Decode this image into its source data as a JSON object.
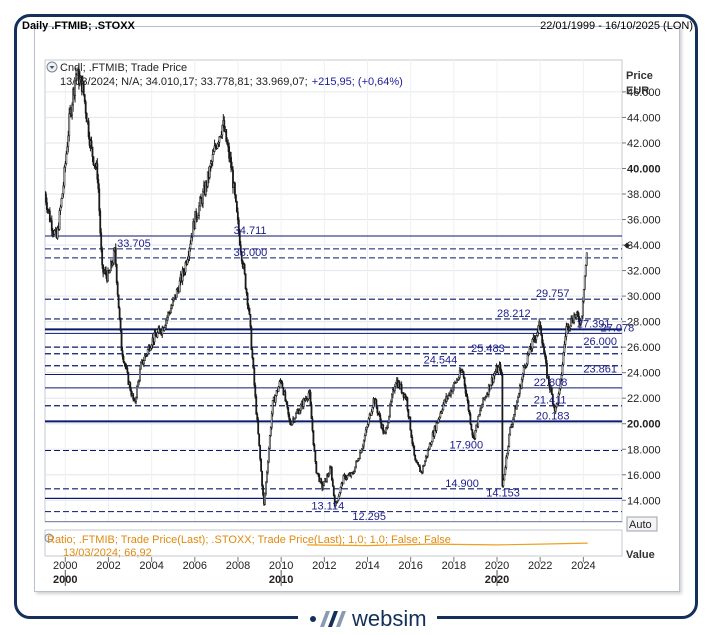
{
  "header": {
    "title": "Daily .FTMIB; .STOXX",
    "date_range": "22/01/1999 - 16/10/2025 (LON)"
  },
  "legend": {
    "series_label": "Cndl; .FTMIB; Trade Price",
    "ohlc_text": "13/03/2024; N/A; 34.010,17; 33.778,81; 33.969,07;",
    "change_text": "+215,95; (+0,64%)"
  },
  "axis": {
    "price_title": "Price",
    "price_unit": "EUR",
    "auto_button": "Auto",
    "value_label": "Value"
  },
  "ratio_panel": {
    "label": "Ratio; .FTMIB; Trade Price(Last); .STOXX; Trade Price(Last);  1,0; 1,0; False; False",
    "value_text": "13/03/2024; 66,92"
  },
  "brand": {
    "name": "websim"
  },
  "colors": {
    "candle": "#1a1a1a",
    "level_line": "#0a1a6e",
    "level_label": "#1c1c8a",
    "ratio_line": "#f0a020",
    "frame": "#13305a"
  },
  "chart_data": {
    "type": "candlestick",
    "title": "Daily .FTMIB; .STOXX",
    "ylabel": "Price EUR",
    "ylim": [
      12300,
      48500
    ],
    "xlim": [
      1999.06,
      2025.79
    ],
    "yticks": [
      "14.000",
      "16.000",
      "18.000",
      "20.000",
      "22.000",
      "24.000",
      "26.000",
      "28.000",
      "30.000",
      "32.000",
      "34.000",
      "36.000",
      "38.000",
      "40.000",
      "42.000",
      "44.000",
      "46.000"
    ],
    "ytick_values": [
      14000,
      16000,
      18000,
      20000,
      22000,
      24000,
      26000,
      28000,
      30000,
      32000,
      34000,
      36000,
      38000,
      40000,
      42000,
      44000,
      46000
    ],
    "bold_ytick_values": [
      20000,
      40000
    ],
    "xticks_minor": [
      "2000",
      "2002",
      "2004",
      "2006",
      "2008",
      "2010",
      "2012",
      "2014",
      "2016",
      "2018",
      "2020",
      "2022",
      "2024"
    ],
    "xticks_minor_values": [
      2000,
      2002,
      2004,
      2006,
      2008,
      2010,
      2012,
      2014,
      2016,
      2018,
      2020,
      2022,
      2024
    ],
    "xticks_major": [
      "2000",
      "2010",
      "2020"
    ],
    "xticks_major_values": [
      2000,
      2010,
      2020
    ],
    "current_marker": 33969,
    "levels": [
      {
        "value": 34711,
        "label": "34.711",
        "label_x": 2007.8,
        "style": "solid",
        "width": 1
      },
      {
        "value": 33705,
        "label": "33.705",
        "label_x": 2002.4,
        "style": "dashed",
        "width": 1
      },
      {
        "value": 33000,
        "label": "33.000",
        "label_x": 2007.8,
        "style": "dashed",
        "width": 1
      },
      {
        "value": 29757,
        "label": "29.757",
        "label_x": 2021.8,
        "style": "dashed",
        "width": 1.2
      },
      {
        "value": 28212,
        "label": "28.212",
        "label_x": 2020.0,
        "style": "dashed",
        "width": 1.2
      },
      {
        "value": 27391,
        "label": "27.391",
        "label_x": 2023.7,
        "style": "solid",
        "width": 2
      },
      {
        "value": 27078,
        "label": "27.078",
        "label_x": 2024.8,
        "style": "solid",
        "width": 1
      },
      {
        "value": 26000,
        "label": "26.000",
        "label_x": 2024.0,
        "style": "dashed",
        "width": 1.2
      },
      {
        "value": 25483,
        "label": "25.483",
        "label_x": 2018.8,
        "style": "dashed",
        "width": 1.2
      },
      {
        "value": 24544,
        "label": "24.544",
        "label_x": 2016.6,
        "style": "dashed",
        "width": 1.2
      },
      {
        "value": 23861,
        "label": "23.861",
        "label_x": 2024.0,
        "style": "solid",
        "width": 1
      },
      {
        "value": 22808,
        "label": "22.808",
        "label_x": 2021.7,
        "style": "solid",
        "width": 1
      },
      {
        "value": 21411,
        "label": "21.411",
        "label_x": 2021.7,
        "style": "dashed",
        "width": 1.2
      },
      {
        "value": 20183,
        "label": "20.183",
        "label_x": 2021.8,
        "style": "solid",
        "width": 2
      },
      {
        "value": 17900,
        "label": "17.900",
        "label_x": 2017.8,
        "style": "dashed",
        "width": 1
      },
      {
        "value": 14900,
        "label": "14.900",
        "label_x": 2017.6,
        "style": "dashed",
        "width": 1.2
      },
      {
        "value": 14153,
        "label": "14.153",
        "label_x": 2019.5,
        "style": "solid",
        "width": 1.2
      },
      {
        "value": 13114,
        "label": "13.114",
        "label_x": 2011.4,
        "style": "dashed",
        "width": 1
      },
      {
        "value": 12295,
        "label": "12.295",
        "label_x": 2013.3,
        "style": "solid",
        "width": 1.2
      }
    ],
    "price_path": [
      {
        "x": 1999.06,
        "y": 38000
      },
      {
        "x": 1999.3,
        "y": 36000
      },
      {
        "x": 1999.6,
        "y": 34500
      },
      {
        "x": 1999.9,
        "y": 38500
      },
      {
        "x": 2000.2,
        "y": 44000
      },
      {
        "x": 2000.5,
        "y": 47500
      },
      {
        "x": 2000.8,
        "y": 46500
      },
      {
        "x": 2001.2,
        "y": 41500
      },
      {
        "x": 2001.5,
        "y": 39500
      },
      {
        "x": 2001.7,
        "y": 32000
      },
      {
        "x": 2002.0,
        "y": 31500
      },
      {
        "x": 2002.3,
        "y": 33500
      },
      {
        "x": 2002.6,
        "y": 26000
      },
      {
        "x": 2002.9,
        "y": 23500
      },
      {
        "x": 2003.2,
        "y": 21500
      },
      {
        "x": 2003.5,
        "y": 24500
      },
      {
        "x": 2004.0,
        "y": 26500
      },
      {
        "x": 2004.5,
        "y": 27500
      },
      {
        "x": 2005.0,
        "y": 29500
      },
      {
        "x": 2005.5,
        "y": 32000
      },
      {
        "x": 2006.0,
        "y": 36000
      },
      {
        "x": 2006.5,
        "y": 38500
      },
      {
        "x": 2007.0,
        "y": 42000
      },
      {
        "x": 2007.3,
        "y": 43500
      },
      {
        "x": 2007.7,
        "y": 40000
      },
      {
        "x": 2008.0,
        "y": 35500
      },
      {
        "x": 2008.5,
        "y": 29000
      },
      {
        "x": 2008.8,
        "y": 22000
      },
      {
        "x": 2009.2,
        "y": 13500
      },
      {
        "x": 2009.6,
        "y": 21500
      },
      {
        "x": 2010.0,
        "y": 23500
      },
      {
        "x": 2010.4,
        "y": 20000
      },
      {
        "x": 2010.8,
        "y": 21000
      },
      {
        "x": 2011.3,
        "y": 22500
      },
      {
        "x": 2011.6,
        "y": 16500
      },
      {
        "x": 2011.9,
        "y": 15000
      },
      {
        "x": 2012.3,
        "y": 16500
      },
      {
        "x": 2012.5,
        "y": 13500
      },
      {
        "x": 2012.9,
        "y": 15800
      },
      {
        "x": 2013.3,
        "y": 16000
      },
      {
        "x": 2013.8,
        "y": 18500
      },
      {
        "x": 2014.3,
        "y": 22000
      },
      {
        "x": 2014.8,
        "y": 19000
      },
      {
        "x": 2015.3,
        "y": 23500
      },
      {
        "x": 2015.8,
        "y": 22000
      },
      {
        "x": 2016.2,
        "y": 17000
      },
      {
        "x": 2016.5,
        "y": 16200
      },
      {
        "x": 2017.0,
        "y": 19000
      },
      {
        "x": 2017.5,
        "y": 21500
      },
      {
        "x": 2018.0,
        "y": 23000
      },
      {
        "x": 2018.4,
        "y": 24200
      },
      {
        "x": 2018.9,
        "y": 18800
      },
      {
        "x": 2019.3,
        "y": 21500
      },
      {
        "x": 2019.9,
        "y": 24000
      },
      {
        "x": 2020.2,
        "y": 24500
      },
      {
        "x": 2020.25,
        "y": 15000
      },
      {
        "x": 2020.6,
        "y": 19500
      },
      {
        "x": 2020.9,
        "y": 21500
      },
      {
        "x": 2021.3,
        "y": 24700
      },
      {
        "x": 2021.8,
        "y": 27000
      },
      {
        "x": 2022.0,
        "y": 27800
      },
      {
        "x": 2022.3,
        "y": 24000
      },
      {
        "x": 2022.7,
        "y": 21000
      },
      {
        "x": 2022.9,
        "y": 22500
      },
      {
        "x": 2023.2,
        "y": 27500
      },
      {
        "x": 2023.6,
        "y": 28500
      },
      {
        "x": 2023.9,
        "y": 28000
      },
      {
        "x": 2024.0,
        "y": 30500
      },
      {
        "x": 2024.2,
        "y": 33969
      }
    ],
    "ratio_path": [
      {
        "x": 2011.2,
        "y": 0.5
      },
      {
        "x": 2014.0,
        "y": 0.45
      },
      {
        "x": 2017.0,
        "y": 0.55
      },
      {
        "x": 2020.0,
        "y": 0.5
      },
      {
        "x": 2022.0,
        "y": 0.55
      },
      {
        "x": 2024.2,
        "y": 0.62
      }
    ]
  }
}
